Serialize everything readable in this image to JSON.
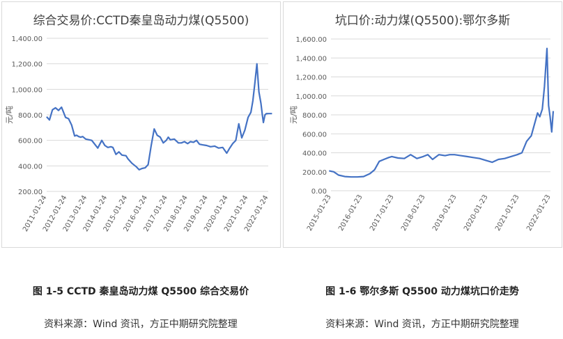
{
  "chart_data": [
    {
      "type": "line",
      "title": "综合交易价:CCTD秦皇岛动力煤(Q5500)",
      "xlabel": "",
      "ylabel": "元/吨",
      "ylim": [
        200,
        1400
      ],
      "yticks": [
        "200.00",
        "400.00",
        "600.00",
        "800.00",
        "1,000.00",
        "1,200.00",
        "1,400.00"
      ],
      "xticks": [
        "2011-01-24",
        "2012-01-24",
        "2013-01-24",
        "2014-01-24",
        "2015-01-24",
        "2016-01-24",
        "2017-01-24",
        "2018-01-24",
        "2019-01-24",
        "2020-01-24",
        "2021-01-24",
        "2022-01-24"
      ],
      "grid": true,
      "line_color": "#4472C4",
      "series": [
        {
          "x": [
            2011.06,
            2011.2,
            2011.35,
            2011.5,
            2011.65,
            2011.8,
            2012.0,
            2012.15,
            2012.3,
            2012.45,
            2012.55,
            2012.65,
            2012.75,
            2012.85,
            2013.0,
            2013.3,
            2013.6,
            2013.8,
            2013.95,
            2014.1,
            2014.25,
            2014.35,
            2014.5,
            2014.65,
            2014.8,
            2015.0,
            2015.1,
            2015.3,
            2015.5,
            2015.65,
            2015.8,
            2015.95,
            2016.1,
            2016.25,
            2016.4,
            2016.55,
            2016.7,
            2016.85,
            2017.0,
            2017.1,
            2017.2,
            2017.4,
            2017.6,
            2017.75,
            2017.9,
            2018.06,
            2018.2,
            2018.35,
            2018.5,
            2018.65,
            2018.8,
            2019.0,
            2019.2,
            2019.4,
            2019.6,
            2019.8,
            2020.0,
            2020.15,
            2020.3,
            2020.45,
            2020.6,
            2020.75,
            2020.9,
            2021.06,
            2021.2,
            2021.3,
            2021.4,
            2021.5,
            2021.6,
            2021.7,
            2021.77,
            2021.82,
            2021.9,
            2021.97,
            2022.03,
            2022.1,
            2022.2,
            2022.25
          ],
          "y": [
            785,
            760,
            840,
            855,
            835,
            860,
            780,
            770,
            720,
            635,
            640,
            630,
            625,
            630,
            610,
            600,
            540,
            600,
            560,
            545,
            550,
            545,
            490,
            510,
            485,
            480,
            455,
            420,
            395,
            370,
            380,
            385,
            410,
            560,
            690,
            640,
            625,
            580,
            600,
            625,
            605,
            610,
            580,
            580,
            590,
            575,
            590,
            585,
            600,
            570,
            565,
            560,
            550,
            555,
            540,
            545,
            500,
            540,
            575,
            600,
            730,
            620,
            680,
            780,
            820,
            910,
            1050,
            1200,
            980,
            890,
            800,
            740,
            800,
            810,
            810,
            810,
            810,
            810
          ]
        }
      ]
    },
    {
      "type": "line",
      "title": "坑口价:动力煤(Q5500):鄂尔多斯",
      "xlabel": "",
      "ylabel": "元/吨",
      "ylim": [
        0,
        1600
      ],
      "yticks": [
        "0.00",
        "200.00",
        "400.00",
        "600.00",
        "800.00",
        "1,000.00",
        "1,200.00",
        "1,400.00",
        "1,600.00"
      ],
      "xticks": [
        "2015-01-23",
        "2016-01-23",
        "2017-01-23",
        "2018-01-23",
        "2019-01-23",
        "2020-01-23",
        "2021-01-23",
        "2022-01-23"
      ],
      "grid": true,
      "line_color": "#4472C4",
      "series": [
        {
          "x": [
            2015.0,
            2015.15,
            2015.3,
            2015.5,
            2015.7,
            2015.9,
            2016.1,
            2016.3,
            2016.45,
            2016.6,
            2016.75,
            2016.9,
            2017.0,
            2017.2,
            2017.4,
            2017.6,
            2017.8,
            2018.0,
            2018.15,
            2018.3,
            2018.5,
            2018.7,
            2018.85,
            2019.0,
            2019.2,
            2019.4,
            2019.6,
            2019.8,
            2020.0,
            2020.2,
            2020.4,
            2020.6,
            2020.8,
            2021.0,
            2021.15,
            2021.3,
            2021.45,
            2021.55,
            2021.65,
            2021.72,
            2021.8,
            2021.87,
            2021.95,
            2022.0,
            2022.05,
            2022.1,
            2022.15
          ],
          "y": [
            210,
            200,
            165,
            150,
            145,
            145,
            150,
            180,
            220,
            310,
            330,
            350,
            360,
            345,
            340,
            380,
            340,
            360,
            380,
            330,
            380,
            370,
            380,
            380,
            370,
            360,
            350,
            340,
            320,
            300,
            330,
            340,
            360,
            380,
            400,
            520,
            580,
            700,
            820,
            780,
            860,
            1100,
            1500,
            900,
            780,
            620,
            840
          ]
        }
      ]
    }
  ],
  "captions": {
    "fig1": "图 1-5 CCTD 秦皇岛动力煤 Q5500 综合交易价",
    "fig2": "图 1-6  鄂尔多斯 Q5500 动力煤坑口价走势"
  },
  "sources": {
    "fig1": "资料来源：Wind 资讯，方正中期研究院整理",
    "fig2": "资料来源：Wind 资讯，方正中期研究院整理"
  }
}
